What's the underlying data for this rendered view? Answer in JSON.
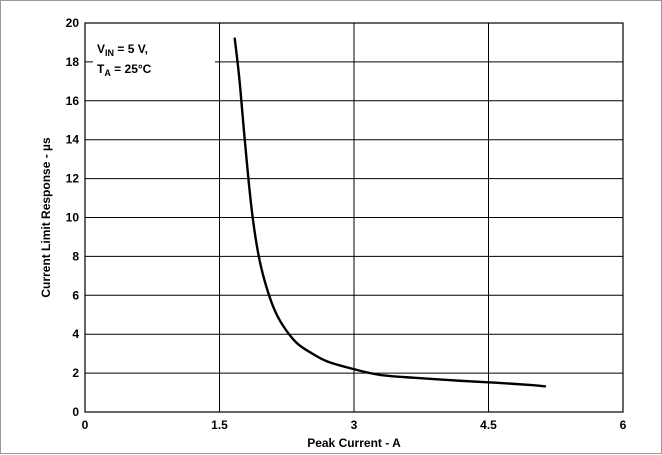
{
  "chart_data": {
    "type": "line",
    "title": "",
    "xlabel": "Peak Current - A",
    "ylabel": "Current Limit Response - µs",
    "xlim": [
      0,
      6
    ],
    "ylim": [
      0,
      20
    ],
    "x_ticks": [
      "0",
      "1.5",
      "3",
      "4.5",
      "6"
    ],
    "y_ticks": [
      "0",
      "2",
      "4",
      "6",
      "8",
      "10",
      "12",
      "14",
      "16",
      "18",
      "20"
    ],
    "grid": true,
    "annotation": {
      "line1_main": "V",
      "line1_sub": "IN",
      "line1_rest": " = 5 V,",
      "line2_main": "T",
      "line2_sub": "A",
      "line2_rest": " = 25°C"
    },
    "series": [
      {
        "x": [
          1.67,
          1.72,
          1.77,
          1.82,
          1.87,
          1.93,
          2.0,
          2.1,
          2.2,
          2.35,
          2.5,
          2.7,
          3.0,
          3.3,
          3.7,
          4.2,
          4.6,
          5.0,
          5.13
        ],
        "y": [
          19.2,
          17.2,
          14.6,
          12.1,
          10.0,
          8.2,
          6.8,
          5.4,
          4.5,
          3.6,
          3.1,
          2.6,
          2.2,
          1.9,
          1.75,
          1.6,
          1.5,
          1.38,
          1.32
        ]
      }
    ]
  }
}
